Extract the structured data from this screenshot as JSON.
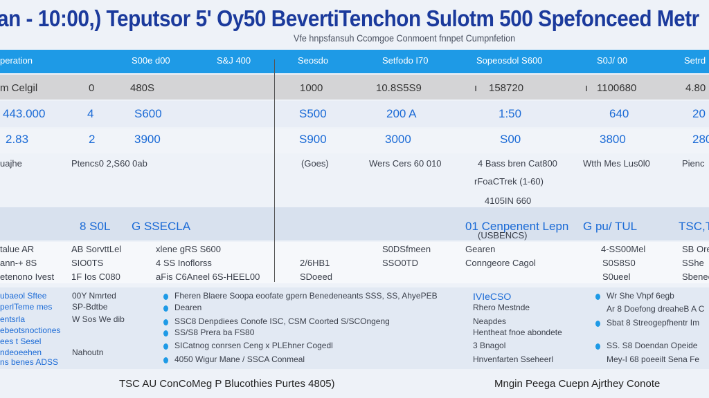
{
  "title": "an - 10:00,) Teputsor 5'  Oy50 BevertiTenchon Sulotm 500 Spefonceed Metr",
  "subtitle": "Vfe hnpsfansuh Ccomgoe Conmoent fnnpet Cumpnfetion",
  "colors": {
    "title": "#1b3a9c",
    "header_bar": "#1e9ae6",
    "highlight_row": "#d4d4d6",
    "value_blue": "#1a6ad6"
  },
  "table": {
    "header": [
      "peration",
      "S00e d00",
      "S&J 400",
      "Seosdo",
      "Setfodo I70",
      "Sopeosdol S600",
      "S0J/ 00",
      "Setrd"
    ],
    "rows": [
      [
        "m Celgil",
        "0",
        "480S",
        "1000",
        "10.8S5S9",
        "ı",
        "158720",
        "ı",
        "1100680",
        "4.80"
      ],
      [
        "443.000",
        "4",
        "S600",
        "S500",
        "200 A",
        "1:50",
        "640",
        "20"
      ],
      [
        "2.83",
        "2",
        "3900",
        "S900",
        "3000",
        "S00",
        "3800",
        "280"
      ],
      [
        "uajhe",
        "Ptencs0 2,S60 0ab",
        "(Goes)",
        "Wers Cers 60 010",
        "4 Bass bren Cat800",
        "Wtth Mes Lus0l0",
        "Pienc"
      ],
      [
        "rFoaCTrek (1-60)"
      ],
      [
        "4105IN 660"
      ],
      [
        "8 S0L",
        "G SSECLA",
        "01 Cenpenent Lepn",
        "G pu/ TUL",
        "TSC,TS"
      ],
      [
        "(USBENCS)"
      ],
      [
        "talue AR",
        "AB SorvttLel",
        "xlene gRS S600",
        "S0DSfmeen",
        "Gearen",
        "4-SS00Mel",
        "SB Oren"
      ],
      [
        "ann-+ 8S",
        "SIO0TS",
        "4 SS Inoflorss",
        "2/6HB1",
        "SSO0TD",
        "Conngeore Cagol",
        "S0S8S0",
        "SShe"
      ],
      [
        "etenono Ivest",
        "1F Ios C080",
        "aFis C6Aneel 6S-HEEL00",
        "SDoeed",
        "S0ueel",
        "Sbenee"
      ]
    ]
  },
  "details": {
    "left_labels": [
      "ubaeol Sftee",
      "perlTeme mes",
      "entsrla",
      "ebeotsnoctiones",
      "ees t Sesel",
      "ndeoeehen",
      "ns benes ADSS"
    ],
    "left_values": [
      "00Y Nmrted",
      "SP-Bdtbe",
      "W Sos We dib",
      "",
      "",
      "Nahoutn",
      ""
    ],
    "middle_items": [
      "Fheren Blaere Soopa eoofate gpern Benedeneants SSS, SS, AhyePEB",
      "Dearen",
      "SSC8 Denpdiees Conofe ISC, CSM Coorted   S/SCOngeng",
      "SS/S8 Prera ba FS80",
      "SICatnog conrsen Ceng x PLEhner Cogedl",
      "4050 Wigur Mane  / SSCA Conmeal"
    ],
    "right_labels": [
      "IVIeCSO",
      "Rhero Mestnde",
      "Neapdes",
      "Hentheat fnoe abondete",
      "3 Bnagol",
      "Hnvenfarten Sseheerl"
    ],
    "far_right_items": [
      "Wr She Vhpf 6egb",
      "Ar 8 Doefong dreaheB A C",
      "Sbat 8 Streogepfhentr Im",
      "SS. S8 Doendan Opeide",
      "Mey-I 68 poeeilt Sena Fe"
    ]
  },
  "footer": {
    "left": "TSC AU ConCoMeg P Blucothies Purtes 4805)",
    "right": "Mngin  Peega Cuepn Ajrthey Conote"
  }
}
